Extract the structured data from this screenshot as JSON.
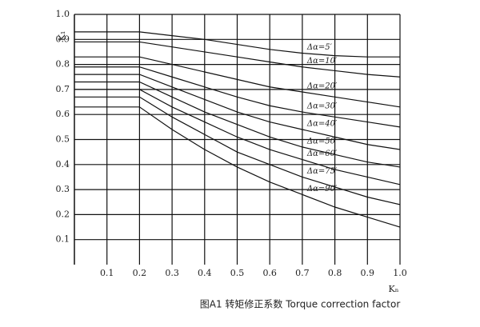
{
  "chart_data": {
    "type": "line",
    "caption": "图A1  转矩修正系数 Torque correction factor",
    "x_label": "Kₙ",
    "y_label": "K₁",
    "x": [
      0,
      0.2,
      0.3,
      0.4,
      0.5,
      0.6,
      0.7,
      0.8,
      0.9,
      1.0
    ],
    "series": [
      {
        "name": "Δα=5′",
        "color": "#111",
        "values": [
          0.93,
          0.93,
          0.915,
          0.9,
          0.88,
          0.86,
          0.845,
          0.835,
          0.83,
          0.83
        ]
      },
      {
        "name": "Δα=10′",
        "color": "#111",
        "values": [
          0.89,
          0.89,
          0.87,
          0.85,
          0.83,
          0.81,
          0.79,
          0.775,
          0.76,
          0.75
        ]
      },
      {
        "name": "Δα=20′",
        "color": "#111",
        "values": [
          0.83,
          0.83,
          0.8,
          0.77,
          0.74,
          0.71,
          0.69,
          0.67,
          0.65,
          0.63
        ]
      },
      {
        "name": "Δα=30′",
        "color": "#111",
        "values": [
          0.79,
          0.79,
          0.75,
          0.71,
          0.67,
          0.635,
          0.61,
          0.59,
          0.57,
          0.55
        ]
      },
      {
        "name": "Δα=40′",
        "color": "#111",
        "values": [
          0.76,
          0.76,
          0.71,
          0.66,
          0.61,
          0.57,
          0.54,
          0.51,
          0.48,
          0.46
        ]
      },
      {
        "name": "Δα=50′",
        "color": "#111",
        "values": [
          0.73,
          0.73,
          0.67,
          0.61,
          0.56,
          0.51,
          0.47,
          0.44,
          0.41,
          0.39
        ]
      },
      {
        "name": "Δα=60′",
        "color": "#111",
        "values": [
          0.7,
          0.7,
          0.63,
          0.57,
          0.51,
          0.46,
          0.42,
          0.38,
          0.35,
          0.32
        ]
      },
      {
        "name": "Δα=75′",
        "color": "#111",
        "values": [
          0.67,
          0.67,
          0.59,
          0.52,
          0.45,
          0.4,
          0.35,
          0.31,
          0.27,
          0.24
        ]
      },
      {
        "name": "Δα=90′",
        "color": "#111",
        "values": [
          0.63,
          0.63,
          0.54,
          0.46,
          0.39,
          0.33,
          0.28,
          0.23,
          0.19,
          0.15
        ]
      }
    ],
    "xlim": [
      0,
      1
    ],
    "ylim": [
      0,
      1
    ],
    "xticks": [
      0.1,
      0.2,
      0.3,
      0.4,
      0.5,
      0.6,
      0.7,
      0.8,
      0.9,
      {
        "value": 1,
        "label": "1.0"
      }
    ],
    "yticks": [
      0.1,
      0.2,
      0.3,
      0.4,
      0.5,
      0.6,
      0.7,
      0.8,
      0.9,
      {
        "value": 1,
        "label": "1.0"
      }
    ],
    "grid": true
  }
}
